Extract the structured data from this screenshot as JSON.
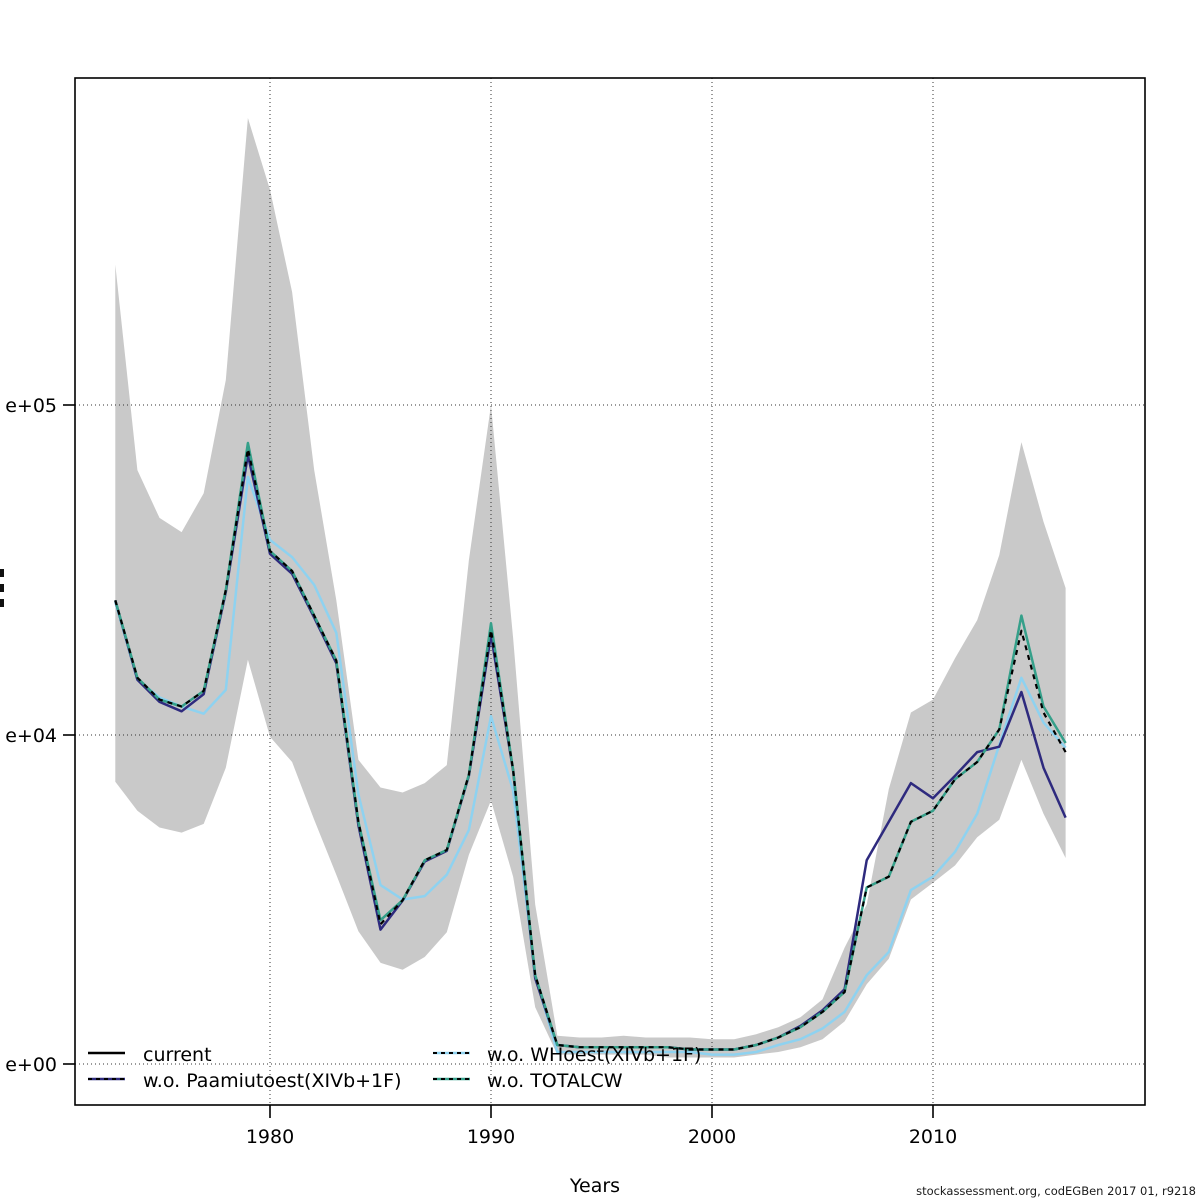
{
  "watermark": "stockassessment.org, codEGBen 2017 01, r9218",
  "axes": {
    "xlabel": "Years",
    "x_ticks": [
      {
        "label": "1980",
        "year": 1980
      },
      {
        "label": "1990",
        "year": 1990
      },
      {
        "label": "2000",
        "year": 2000
      },
      {
        "label": "2010",
        "year": 2010
      }
    ],
    "y_ticks": [
      {
        "label": "e+05",
        "value": 100000
      },
      {
        "label": "e+04",
        "value": 10000
      },
      {
        "label": "e+00",
        "value": 1
      }
    ]
  },
  "legend": {
    "items": [
      {
        "label": "current",
        "color": "#000000",
        "style": "solid"
      },
      {
        "label": "w.o. Paamiutoest(XIVb+1F)",
        "color": "#2e2a7e",
        "style": "dashed-overlay"
      },
      {
        "label": "w.o. WHoest(XIVb+1F)",
        "color": "#8ed2f0",
        "style": "dashed-overlay"
      },
      {
        "label": "w.o. TOTALCW",
        "color": "#35a08a",
        "style": "dashed-overlay"
      }
    ]
  },
  "chart_data": {
    "type": "line",
    "title": "",
    "xlabel": "Years",
    "ylabel": "",
    "xlim": [
      1973,
      2016
    ],
    "ylim": [
      1,
      741000
    ],
    "y_scale": "log (ticks 1e+00, 1e+04, 1e+05)",
    "grid": true,
    "legend_position": "bottom-left-inside",
    "x": [
      1973,
      1974,
      1975,
      1976,
      1977,
      1978,
      1979,
      1980,
      1981,
      1982,
      1983,
      1984,
      1985,
      1986,
      1987,
      1988,
      1989,
      1990,
      1991,
      1992,
      1993,
      1994,
      1995,
      1996,
      1997,
      1998,
      1999,
      2000,
      2001,
      2002,
      2003,
      2004,
      2005,
      2006,
      2007,
      2008,
      2009,
      2010,
      2011,
      2012,
      2013,
      2014,
      2015,
      2016
    ],
    "band": {
      "name": "confidence-band",
      "color": "#c9c9c9",
      "upper": [
        266000,
        63500,
        45500,
        41200,
        54000,
        119000,
        741000,
        449000,
        220000,
        63500,
        25600,
        5000,
        2300,
        2000,
        2600,
        4300,
        33900,
        100000,
        19700,
        87,
        2.2,
        2.1,
        2.1,
        2.2,
        2.1,
        2.1,
        2.1,
        2.0,
        2.0,
        2.3,
        2.8,
        3.7,
        6.1,
        26,
        87,
        2200,
        11700,
        12800,
        17100,
        22300,
        35100,
        77200,
        44300,
        27900
      ],
      "lower": [
        2700,
        1200,
        750,
        650,
        830,
        4000,
        16900,
        9500,
        4700,
        930,
        200,
        41,
        17,
        14,
        20,
        40,
        350,
        1600,
        190,
        4.9,
        1.3,
        1.3,
        1.3,
        1.3,
        1.3,
        1.2,
        1.2,
        1.2,
        1.2,
        1.3,
        1.4,
        1.6,
        2.0,
        3.3,
        9.3,
        19,
        100,
        160,
        260,
        570,
        930,
        5000,
        1100,
        320
      ]
    },
    "series": [
      {
        "name": "current",
        "color": "#000000",
        "values": [
          25600,
          14900,
          12800,
          12200,
          13600,
          27500,
          73600,
          36100,
          31400,
          23000,
          16800,
          880,
          50,
          98,
          300,
          400,
          3300,
          20800,
          3800,
          12,
          1.7,
          1.6,
          1.6,
          1.6,
          1.6,
          1.6,
          1.5,
          1.5,
          1.5,
          1.7,
          2.1,
          2.8,
          4.3,
          7.5,
          140,
          190,
          880,
          1200,
          2900,
          4700,
          10400,
          20700,
          11700,
          6200
        ]
      },
      {
        "name": "w.o. Paamiutoest(XIVb+1F)",
        "color": "#2e2a7e",
        "values": [
          25600,
          14700,
          12600,
          11800,
          13300,
          27100,
          70500,
          35400,
          30800,
          22700,
          16500,
          800,
          43,
          97,
          290,
          390,
          3200,
          20100,
          3700,
          11,
          1.7,
          1.6,
          1.6,
          1.6,
          1.6,
          1.6,
          1.5,
          1.5,
          1.5,
          1.7,
          2.1,
          2.9,
          4.5,
          8.1,
          300,
          880,
          2600,
          1700,
          3200,
          6200,
          7200,
          13500,
          4000,
          990
        ]
      },
      {
        "name": "w.o. WHoest(XIVb+1F)",
        "color": "#8ed2f0",
        "values": [
          25300,
          14700,
          13000,
          12200,
          11600,
          13700,
          60500,
          39000,
          34600,
          28500,
          20400,
          1900,
          150,
          100,
          110,
          200,
          700,
          11400,
          2100,
          12,
          1.4,
          1.4,
          1.4,
          1.4,
          1.4,
          1.4,
          1.4,
          1.3,
          1.3,
          1.4,
          1.7,
          2.0,
          2.7,
          4.3,
          12,
          23,
          130,
          190,
          380,
          1100,
          7600,
          14900,
          10900,
          7000
        ]
      },
      {
        "name": "w.o. TOTALCW",
        "color": "#35a08a",
        "values": [
          25600,
          14900,
          12800,
          12200,
          13600,
          27500,
          76700,
          36100,
          31400,
          23000,
          16800,
          880,
          56,
          98,
          300,
          400,
          3300,
          21800,
          3800,
          12,
          1.7,
          1.6,
          1.6,
          1.6,
          1.6,
          1.6,
          1.5,
          1.5,
          1.5,
          1.7,
          2.1,
          2.8,
          4.3,
          7.5,
          140,
          190,
          880,
          1200,
          2900,
          4700,
          10400,
          23000,
          12200,
          8000
        ]
      }
    ]
  }
}
